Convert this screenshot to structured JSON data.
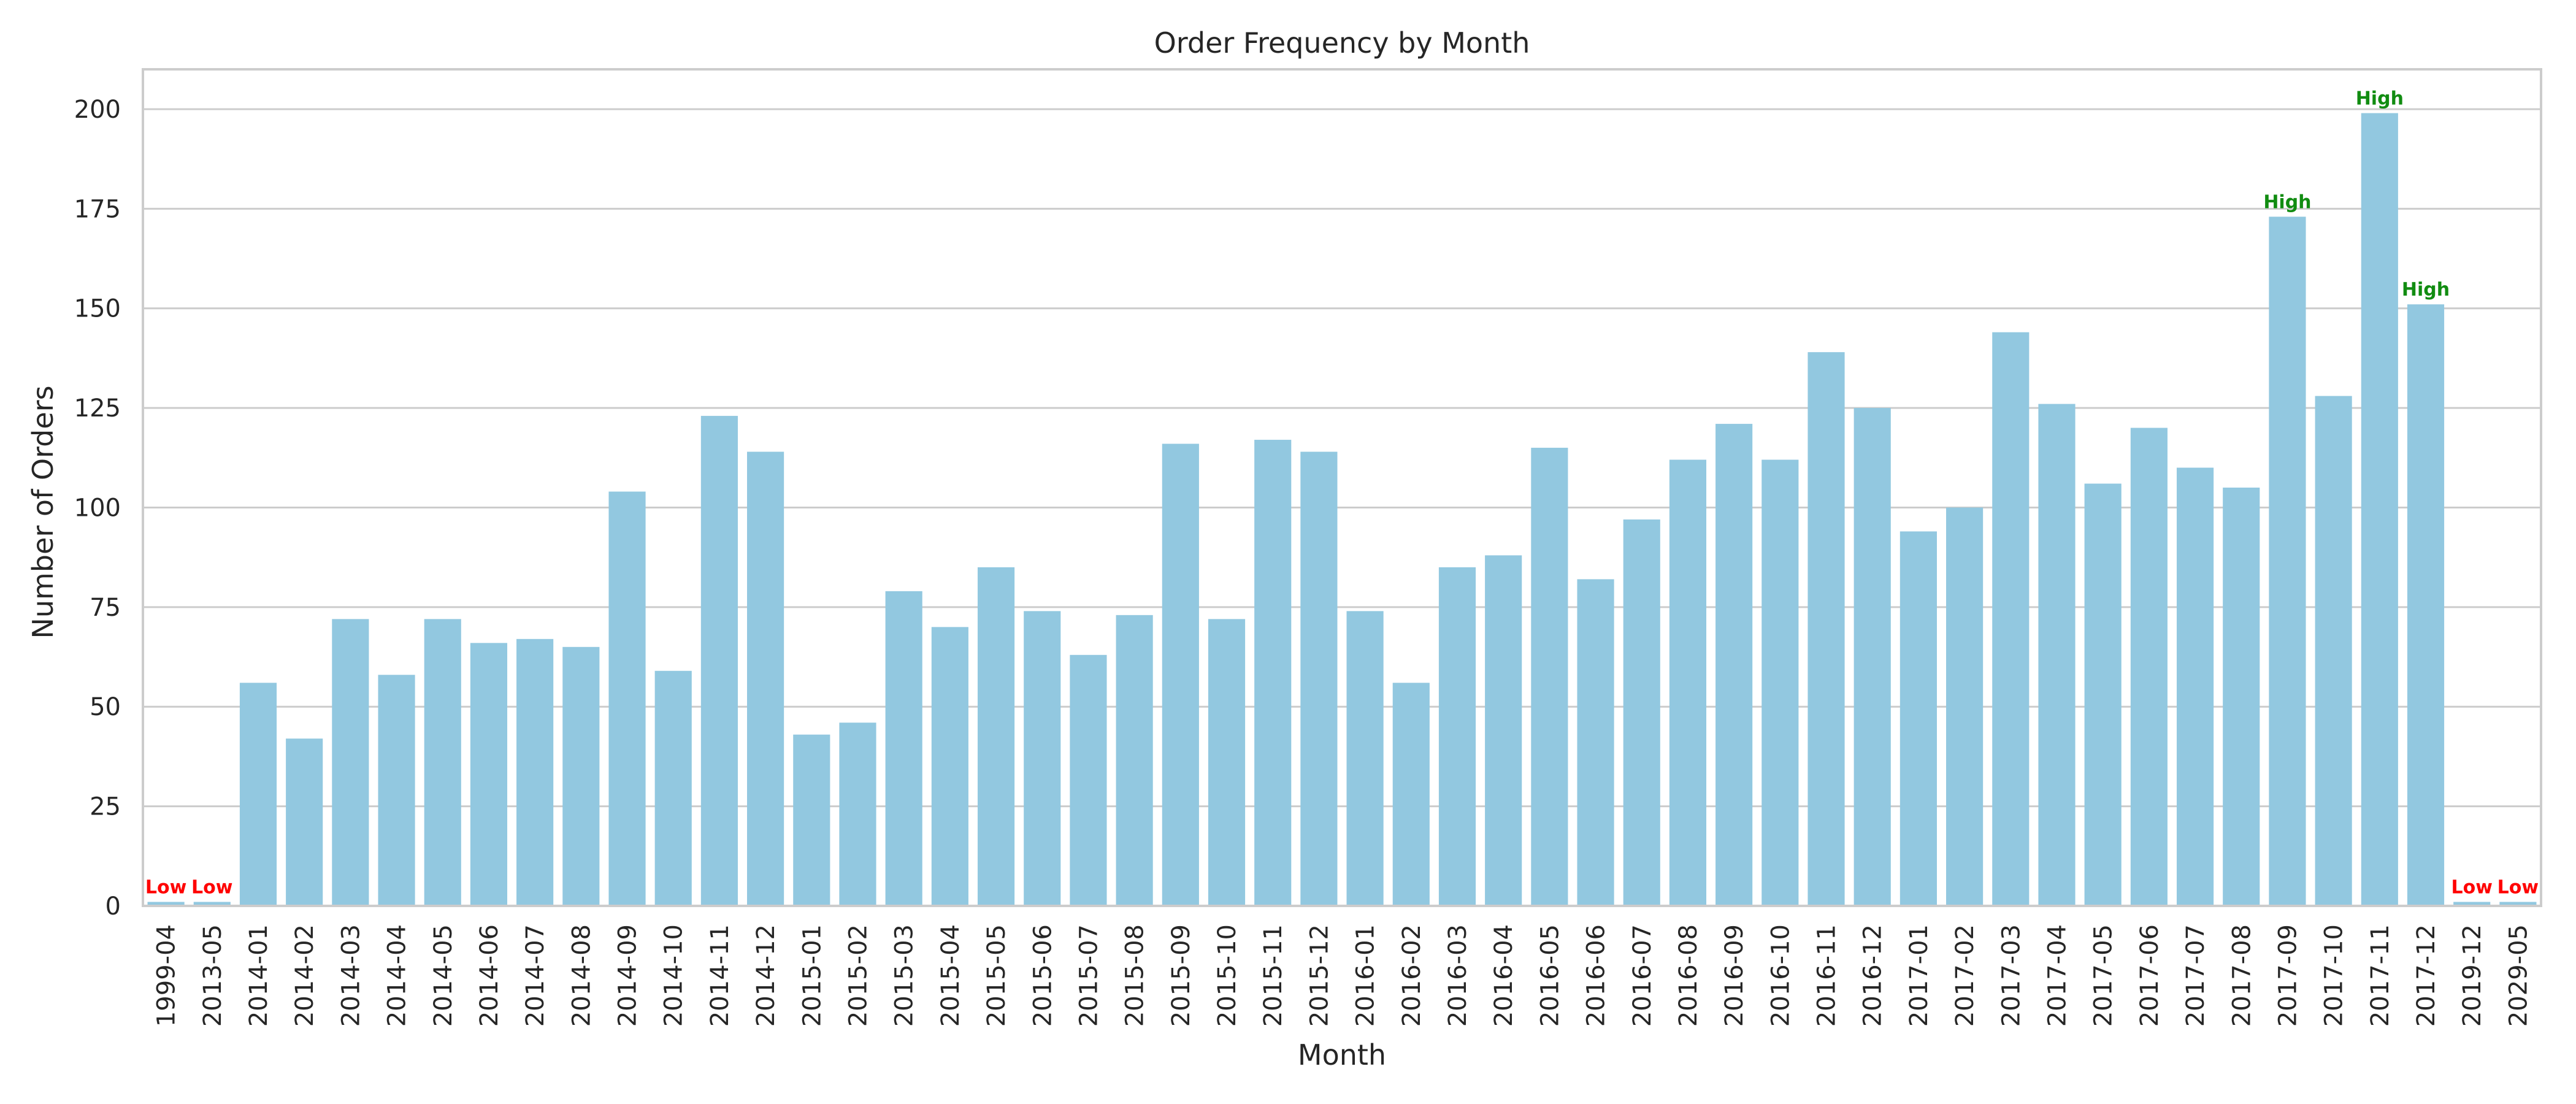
{
  "chart_data": {
    "type": "bar",
    "title": "Order Frequency by Month",
    "xlabel": "Month",
    "ylabel": "Number of Orders",
    "ylim": [
      0,
      210
    ],
    "yticks": [
      0,
      25,
      50,
      75,
      100,
      125,
      150,
      175,
      200
    ],
    "grid": "horizontal",
    "colors": {
      "bar": "#92c8e0",
      "high": "#118c11",
      "low": "#ff0000",
      "grid": "#cccccc"
    },
    "categories": [
      "1999-04",
      "2013-05",
      "2014-01",
      "2014-02",
      "2014-03",
      "2014-04",
      "2014-05",
      "2014-06",
      "2014-07",
      "2014-08",
      "2014-09",
      "2014-10",
      "2014-11",
      "2014-12",
      "2015-01",
      "2015-02",
      "2015-03",
      "2015-04",
      "2015-05",
      "2015-06",
      "2015-07",
      "2015-08",
      "2015-09",
      "2015-10",
      "2015-11",
      "2015-12",
      "2016-01",
      "2016-02",
      "2016-03",
      "2016-04",
      "2016-05",
      "2016-06",
      "2016-07",
      "2016-08",
      "2016-09",
      "2016-10",
      "2016-11",
      "2016-12",
      "2017-01",
      "2017-02",
      "2017-03",
      "2017-04",
      "2017-05",
      "2017-06",
      "2017-07",
      "2017-08",
      "2017-09",
      "2017-10",
      "2017-11",
      "2017-12",
      "2019-12",
      "2029-05"
    ],
    "values": [
      1,
      1,
      56,
      42,
      72,
      58,
      72,
      66,
      67,
      65,
      104,
      59,
      123,
      114,
      43,
      46,
      79,
      70,
      85,
      74,
      63,
      73,
      116,
      72,
      117,
      114,
      74,
      56,
      85,
      88,
      115,
      82,
      97,
      112,
      121,
      112,
      139,
      125,
      94,
      100,
      144,
      126,
      106,
      120,
      110,
      105,
      173,
      128,
      199,
      151,
      1,
      1
    ],
    "annotations": [
      {
        "category": "1999-04",
        "text": "Low",
        "kind": "low"
      },
      {
        "category": "2013-05",
        "text": "Low",
        "kind": "low"
      },
      {
        "category": "2017-09",
        "text": "High",
        "kind": "high"
      },
      {
        "category": "2017-11",
        "text": "High",
        "kind": "high"
      },
      {
        "category": "2017-12",
        "text": "High",
        "kind": "high"
      },
      {
        "category": "2019-12",
        "text": "Low",
        "kind": "low"
      },
      {
        "category": "2029-05",
        "text": "Low",
        "kind": "low"
      }
    ]
  }
}
